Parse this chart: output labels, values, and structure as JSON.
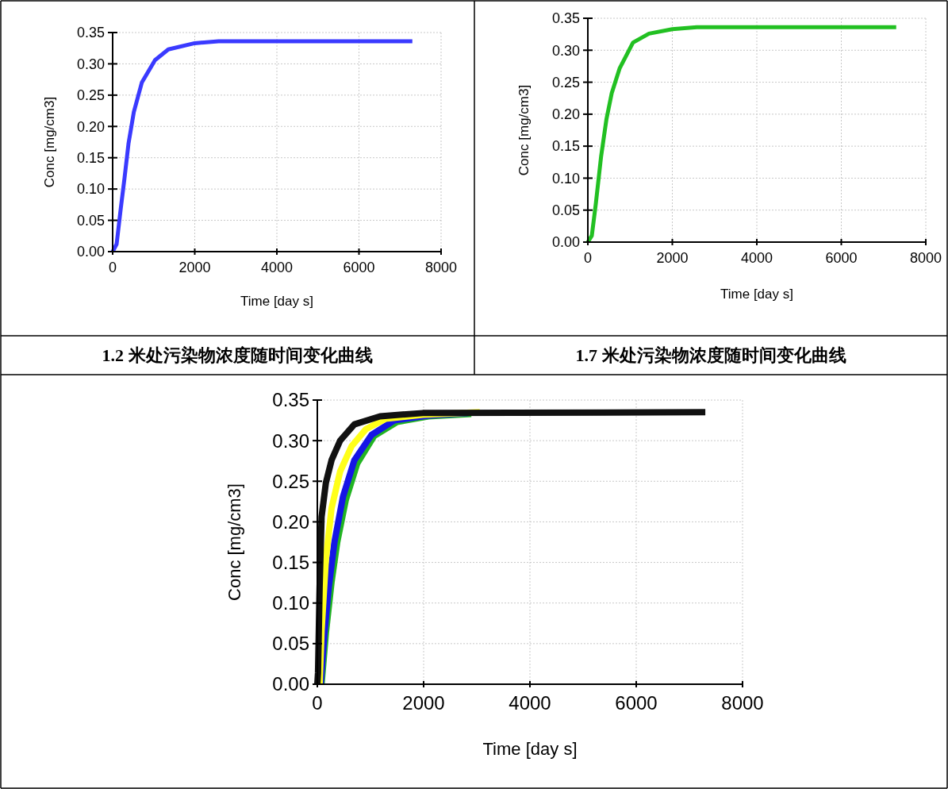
{
  "chart_data": [
    {
      "type": "line",
      "xlabel": "Time [day s]",
      "ylabel": "Conc [mg/cm3]",
      "annotations": [
        "1.2 米处污染物浓度随时间变化曲线"
      ],
      "xlim": [
        0,
        8000
      ],
      "xticks": [
        0,
        2000,
        4000,
        6000,
        8000
      ],
      "ylim": [
        0,
        0.35
      ],
      "yticks": [
        {
          "value": 0,
          "label": "0.00"
        },
        {
          "value": 0.05,
          "label": "0.05"
        },
        {
          "value": 0.1,
          "label": "0.10"
        },
        {
          "value": 0.15,
          "label": "0.15"
        },
        {
          "value": 0.2,
          "label": "0.20"
        },
        {
          "value": 0.25,
          "label": "0.25"
        },
        {
          "value": 0.3,
          "label": "0.30"
        },
        {
          "value": 0.35,
          "label": "0.35"
        }
      ],
      "grid": true,
      "series": [
        {
          "color": "#3a3aff",
          "x": [
            0,
            97,
            194,
            290,
            387,
            516,
            710,
            1032,
            1355,
            2000,
            2580,
            7300
          ],
          "values": [
            0,
            0.012,
            0.067,
            0.118,
            0.173,
            0.223,
            0.27,
            0.306,
            0.323,
            0.333,
            0.336,
            0.336
          ]
        }
      ]
    },
    {
      "type": "line",
      "xlabel": "Time [day s]",
      "ylabel": "Conc [mg/cm3]",
      "annotations": [
        "1.7 米处污染物浓度随时间变化曲线"
      ],
      "xlim": [
        0,
        8000
      ],
      "xticks": [
        0,
        2000,
        4000,
        6000,
        8000
      ],
      "ylim": [
        0,
        0.35
      ],
      "yticks": [
        {
          "value": 0,
          "label": "0.00"
        },
        {
          "value": 0.05,
          "label": "0.05"
        },
        {
          "value": 0.1,
          "label": "0.10"
        },
        {
          "value": 0.15,
          "label": "0.15"
        },
        {
          "value": 0.2,
          "label": "0.20"
        },
        {
          "value": 0.25,
          "label": "0.25"
        },
        {
          "value": 0.3,
          "label": "0.30"
        },
        {
          "value": 0.35,
          "label": "0.35"
        }
      ],
      "grid": true,
      "series": [
        {
          "color": "#22c022",
          "x": [
            0,
            94,
            189,
            314,
            440,
            566,
            755,
            1069,
            1447,
            2000,
            2579,
            7300
          ],
          "values": [
            0,
            0.01,
            0.06,
            0.134,
            0.192,
            0.233,
            0.272,
            0.312,
            0.326,
            0.333,
            0.336,
            0.336
          ]
        }
      ]
    },
    {
      "type": "line",
      "xlabel": "Time [day s]",
      "ylabel": "Conc [mg/cm3]",
      "xlim": [
        0,
        8000
      ],
      "xticks": [
        0,
        2000,
        4000,
        6000,
        8000
      ],
      "ylim": [
        0,
        0.35
      ],
      "yticks": [
        {
          "value": 0,
          "label": "0.00"
        },
        {
          "value": 0.05,
          "label": "0.05"
        },
        {
          "value": 0.1,
          "label": "0.10"
        },
        {
          "value": 0.15,
          "label": "0.15"
        },
        {
          "value": 0.2,
          "label": "0.20"
        },
        {
          "value": 0.25,
          "label": "0.25"
        },
        {
          "value": 0.3,
          "label": "0.30"
        },
        {
          "value": 0.35,
          "label": "0.35"
        }
      ],
      "grid": true,
      "series": [
        {
          "color": "#22b422",
          "x": [
            80,
            161,
            268,
            375,
            536,
            751,
            1072,
            1501,
            2091,
            2896
          ],
          "values": [
            0,
            0.063,
            0.126,
            0.175,
            0.227,
            0.272,
            0.306,
            0.323,
            0.33,
            0.333
          ]
        },
        {
          "color": "#1515e6",
          "x": [
            64,
            134,
            214,
            322,
            483,
            697,
            1019,
            1448,
            2091,
            2842
          ],
          "values": [
            0,
            0.063,
            0.119,
            0.175,
            0.231,
            0.276,
            0.307,
            0.325,
            0.331,
            0.334
          ]
        },
        {
          "color": "#ffff1a",
          "x": [
            43,
            80,
            161,
            268,
            429,
            643,
            912,
            1287,
            1984,
            3056
          ],
          "values": [
            0,
            0.066,
            0.154,
            0.217,
            0.262,
            0.293,
            0.314,
            0.327,
            0.332,
            0.335
          ]
        },
        {
          "color": "#111111",
          "x": [
            0,
            13,
            43,
            80,
            161,
            268,
            429,
            697,
            1180,
            1984,
            7300
          ],
          "values": [
            0,
            0.014,
            0.119,
            0.206,
            0.248,
            0.276,
            0.3,
            0.32,
            0.33,
            0.334,
            0.335
          ]
        }
      ]
    }
  ]
}
